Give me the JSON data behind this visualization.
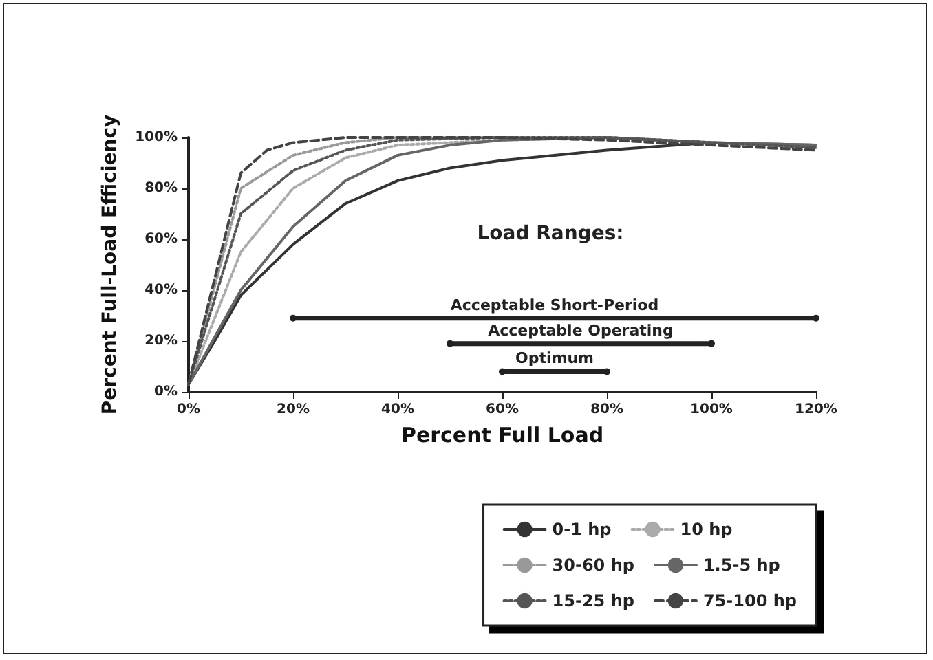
{
  "chart_data": {
    "type": "line",
    "xlabel": "Percent Full Load",
    "ylabel": "Percent Full-Load Efficiency",
    "annotations": [
      "Load Ranges:"
    ],
    "xlim": [
      0,
      120
    ],
    "ylim": [
      0,
      100
    ],
    "xticks": [
      {
        "value": 0,
        "label": "0%"
      },
      {
        "value": 20,
        "label": "20%"
      },
      {
        "value": 40,
        "label": "40%"
      },
      {
        "value": 60,
        "label": "60%"
      },
      {
        "value": 80,
        "label": "80%"
      },
      {
        "value": 100,
        "label": "100%"
      },
      {
        "value": 120,
        "label": "120%"
      }
    ],
    "yticks": [
      {
        "value": 0,
        "label": "0%"
      },
      {
        "value": 20,
        "label": "20%"
      },
      {
        "value": 40,
        "label": "40%"
      },
      {
        "value": 60,
        "label": "60%"
      },
      {
        "value": 80,
        "label": "80%"
      },
      {
        "value": 100,
        "label": "100%"
      }
    ],
    "grid": false,
    "legend": "bottom right",
    "series": [
      {
        "name": "0-1 hp",
        "color": "#333333",
        "line_style": "solid",
        "marker": "none",
        "x": [
          0,
          5,
          10,
          20,
          30,
          40,
          50,
          60,
          80,
          100,
          120
        ],
        "values": [
          3,
          20,
          38,
          58,
          74,
          83,
          88,
          91,
          95,
          98,
          97
        ]
      },
      {
        "name": "10 hp",
        "color": "#aaaaaa",
        "line_style": "dotted",
        "marker": "none",
        "x": [
          0,
          10,
          20,
          30,
          40,
          60,
          80,
          100,
          120
        ],
        "values": [
          3,
          55,
          80,
          92,
          97,
          99,
          100,
          98,
          97
        ]
      },
      {
        "name": "30-60 hp",
        "color": "#999999",
        "line_style": "dotted",
        "marker": "none",
        "x": [
          0,
          10,
          20,
          30,
          40,
          60,
          80,
          100,
          120
        ],
        "values": [
          3,
          80,
          93,
          98,
          100,
          100,
          100,
          98,
          96
        ]
      },
      {
        "name": "1.5-5 hp",
        "color": "#666666",
        "line_style": "solid",
        "marker": "none",
        "x": [
          0,
          10,
          20,
          30,
          40,
          50,
          60,
          80,
          100,
          120
        ],
        "values": [
          3,
          40,
          65,
          83,
          93,
          97,
          99,
          100,
          98,
          97
        ]
      },
      {
        "name": "15-25 hp",
        "color": "#555555",
        "line_style": "dotted",
        "marker": "none",
        "x": [
          0,
          10,
          20,
          30,
          40,
          60,
          80,
          100,
          120
        ],
        "values": [
          3,
          70,
          87,
          95,
          99,
          100,
          100,
          98,
          96
        ]
      },
      {
        "name": "75-100 hp",
        "color": "#444444",
        "line_style": "dashed",
        "marker": "none",
        "x": [
          0,
          10,
          15,
          20,
          30,
          60,
          80,
          100,
          120
        ],
        "values": [
          3,
          86,
          95,
          98,
          100,
          100,
          99,
          97,
          95
        ]
      },
      {
        "name": "Acceptable Short-Period",
        "color": "#222222",
        "line_style": "solid",
        "marker": "circle",
        "x": [
          20,
          120
        ],
        "values": [
          29,
          29
        ]
      },
      {
        "name": "Acceptable Operating",
        "color": "#222222",
        "line_style": "solid",
        "marker": "circle",
        "x": [
          50,
          100
        ],
        "values": [
          19,
          19
        ]
      },
      {
        "name": "Optimum",
        "color": "#222222",
        "line_style": "solid",
        "marker": "circle",
        "x": [
          60,
          80
        ],
        "values": [
          8,
          8
        ]
      }
    ]
  }
}
